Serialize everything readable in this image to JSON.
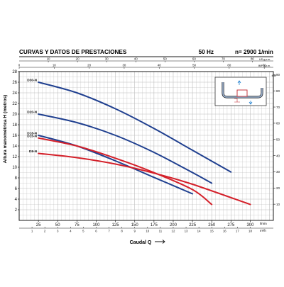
{
  "header": {
    "title": "CURVAS Y DATOS DE PRESTACIONES",
    "frequency": "50 Hz",
    "speed": "n= 2900  1/min"
  },
  "colors": {
    "title": "#1f5fa8",
    "frame": "#1a1a1a",
    "grid": "#b9b9b9",
    "blue_curve": "#1f3f8f",
    "red_curve": "#d4202a",
    "text": "#111111"
  },
  "chart_data": {
    "type": "line",
    "grid": true,
    "xlabel": "Caudal Q",
    "ylabel": "Altura manométrica H (metros)",
    "x_bottom": {
      "label": "Caudal Q",
      "unit": "l/min",
      "range": [
        0,
        330
      ],
      "ticks": [
        25,
        50,
        75,
        100,
        125,
        150,
        175,
        200,
        225,
        250,
        275,
        300
      ]
    },
    "x_bottom_secondary": {
      "unit": "m³/h",
      "range": [
        0,
        19.8
      ],
      "ticks": [
        1,
        2,
        3,
        4,
        5,
        6,
        7,
        8,
        9,
        10,
        11,
        12,
        13,
        14,
        15,
        16,
        17,
        18
      ]
    },
    "x_top": {
      "unit": "US g.p.m.",
      "range": [
        0,
        87.2
      ],
      "ticks": [
        10,
        20,
        30,
        40,
        50,
        60,
        70,
        80
      ]
    },
    "x_top_secondary": {
      "unit": "IMP g.p.m.",
      "range": [
        0,
        72.6
      ],
      "ticks": [
        0,
        10,
        20,
        30,
        40,
        50,
        60,
        70
      ]
    },
    "y_left": {
      "label": "Altura manométrica H (metros)",
      "range": [
        0,
        28
      ],
      "ticks": [
        2,
        4,
        6,
        8,
        10,
        12,
        14,
        16,
        18,
        20,
        22,
        24,
        26,
        28
      ]
    },
    "y_right": {
      "unit": "feet",
      "range": [
        0,
        91.9
      ],
      "ticks": [
        10,
        20,
        30,
        40,
        50,
        60,
        70,
        80,
        90
      ]
    },
    "series": [
      {
        "name": "D30-N",
        "color": "blue",
        "x": [
          25,
          75,
          125,
          175,
          225,
          275
        ],
        "y": [
          26,
          24.0,
          21.0,
          17.3,
          13.2,
          9.1
        ]
      },
      {
        "name": "D20-N",
        "color": "blue",
        "x": [
          25,
          75,
          125,
          175,
          225,
          250
        ],
        "y": [
          20,
          18.4,
          16.0,
          12.8,
          9.0,
          7.0
        ]
      },
      {
        "name": "D18-N",
        "color": "blue",
        "x": [
          25,
          75,
          125,
          175,
          225
        ],
        "y": [
          16,
          14.0,
          11.2,
          8.1,
          5.0
        ]
      },
      {
        "name": "D15-N",
        "color": "red",
        "x": [
          25,
          75,
          125,
          175,
          225,
          250
        ],
        "y": [
          15.5,
          14.0,
          11.7,
          9.0,
          5.8,
          3.0
        ]
      },
      {
        "name": "D8-N",
        "color": "red",
        "x": [
          25,
          75,
          125,
          175,
          225,
          300
        ],
        "y": [
          12.6,
          11.8,
          10.6,
          8.9,
          6.8,
          3.0
        ]
      }
    ]
  }
}
